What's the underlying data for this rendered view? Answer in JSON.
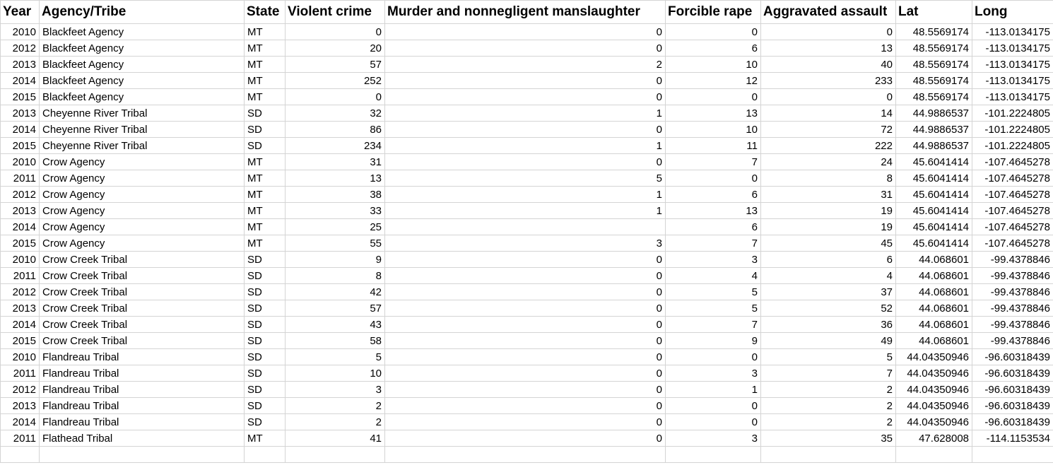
{
  "sheet": {
    "columns": [
      {
        "key": "year",
        "label": "Year",
        "align": "right"
      },
      {
        "key": "agency",
        "label": "Agency/Tribe",
        "align": "left"
      },
      {
        "key": "state",
        "label": "State",
        "align": "left"
      },
      {
        "key": "violent",
        "label": "Violent crime",
        "align": "right"
      },
      {
        "key": "murder",
        "label": "Murder and nonnegligent manslaughter",
        "align": "right"
      },
      {
        "key": "rape",
        "label": "Forcible rape",
        "align": "right"
      },
      {
        "key": "assault",
        "label": "Aggravated assault",
        "align": "right"
      },
      {
        "key": "lat",
        "label": "Lat",
        "align": "right"
      },
      {
        "key": "long",
        "label": "Long",
        "align": "right"
      }
    ],
    "rows": [
      [
        "2010",
        "Blackfeet Agency",
        "MT",
        "0",
        "0",
        "0",
        "0",
        "48.5569174",
        "-113.0134175"
      ],
      [
        "2012",
        "Blackfeet Agency",
        "MT",
        "20",
        "0",
        "6",
        "13",
        "48.5569174",
        "-113.0134175"
      ],
      [
        "2013",
        "Blackfeet Agency",
        "MT",
        "57",
        "2",
        "10",
        "40",
        "48.5569174",
        "-113.0134175"
      ],
      [
        "2014",
        "Blackfeet Agency",
        "MT",
        "252",
        "0",
        "12",
        "233",
        "48.5569174",
        "-113.0134175"
      ],
      [
        "2015",
        "Blackfeet Agency",
        "MT",
        "0",
        "0",
        "0",
        "0",
        "48.5569174",
        "-113.0134175"
      ],
      [
        "2013",
        "Cheyenne River Tribal",
        "SD",
        "32",
        "1",
        "13",
        "14",
        "44.9886537",
        "-101.2224805"
      ],
      [
        "2014",
        "Cheyenne River Tribal",
        "SD",
        "86",
        "0",
        "10",
        "72",
        "44.9886537",
        "-101.2224805"
      ],
      [
        "2015",
        "Cheyenne River Tribal",
        "SD",
        "234",
        "1",
        "11",
        "222",
        "44.9886537",
        "-101.2224805"
      ],
      [
        "2010",
        "Crow Agency",
        "MT",
        "31",
        "0",
        "7",
        "24",
        "45.6041414",
        "-107.4645278"
      ],
      [
        "2011",
        "Crow Agency",
        "MT",
        "13",
        "5",
        "0",
        "8",
        "45.6041414",
        "-107.4645278"
      ],
      [
        "2012",
        "Crow Agency",
        "MT",
        "38",
        "1",
        "6",
        "31",
        "45.6041414",
        "-107.4645278"
      ],
      [
        "2013",
        "Crow Agency",
        "MT",
        "33",
        "1",
        "13",
        "19",
        "45.6041414",
        "-107.4645278"
      ],
      [
        "2014",
        "Crow Agency",
        "MT",
        "25",
        "",
        "6",
        "19",
        "45.6041414",
        "-107.4645278"
      ],
      [
        "2015",
        "Crow Agency",
        "MT",
        "55",
        "3",
        "7",
        "45",
        "45.6041414",
        "-107.4645278"
      ],
      [
        "2010",
        "Crow Creek Tribal",
        "SD",
        "9",
        "0",
        "3",
        "6",
        "44.068601",
        "-99.4378846"
      ],
      [
        "2011",
        "Crow Creek Tribal",
        "SD",
        "8",
        "0",
        "4",
        "4",
        "44.068601",
        "-99.4378846"
      ],
      [
        "2012",
        "Crow Creek Tribal",
        "SD",
        "42",
        "0",
        "5",
        "37",
        "44.068601",
        "-99.4378846"
      ],
      [
        "2013",
        "Crow Creek Tribal",
        "SD",
        "57",
        "0",
        "5",
        "52",
        "44.068601",
        "-99.4378846"
      ],
      [
        "2014",
        "Crow Creek Tribal",
        "SD",
        "43",
        "0",
        "7",
        "36",
        "44.068601",
        "-99.4378846"
      ],
      [
        "2015",
        "Crow Creek Tribal",
        "SD",
        "58",
        "0",
        "9",
        "49",
        "44.068601",
        "-99.4378846"
      ],
      [
        "2010",
        "Flandreau Tribal",
        "SD",
        "5",
        "0",
        "0",
        "5",
        "44.04350946",
        "-96.60318439"
      ],
      [
        "2011",
        "Flandreau Tribal",
        "SD",
        "10",
        "0",
        "3",
        "7",
        "44.04350946",
        "-96.60318439"
      ],
      [
        "2012",
        "Flandreau Tribal",
        "SD",
        "3",
        "0",
        "1",
        "2",
        "44.04350946",
        "-96.60318439"
      ],
      [
        "2013",
        "Flandreau Tribal",
        "SD",
        "2",
        "0",
        "0",
        "2",
        "44.04350946",
        "-96.60318439"
      ],
      [
        "2014",
        "Flandreau Tribal",
        "SD",
        "2",
        "0",
        "0",
        "2",
        "44.04350946",
        "-96.60318439"
      ],
      [
        "2011",
        "Flathead Tribal",
        "MT",
        "41",
        "0",
        "3",
        "35",
        "47.628008",
        "-114.1153534"
      ]
    ]
  }
}
